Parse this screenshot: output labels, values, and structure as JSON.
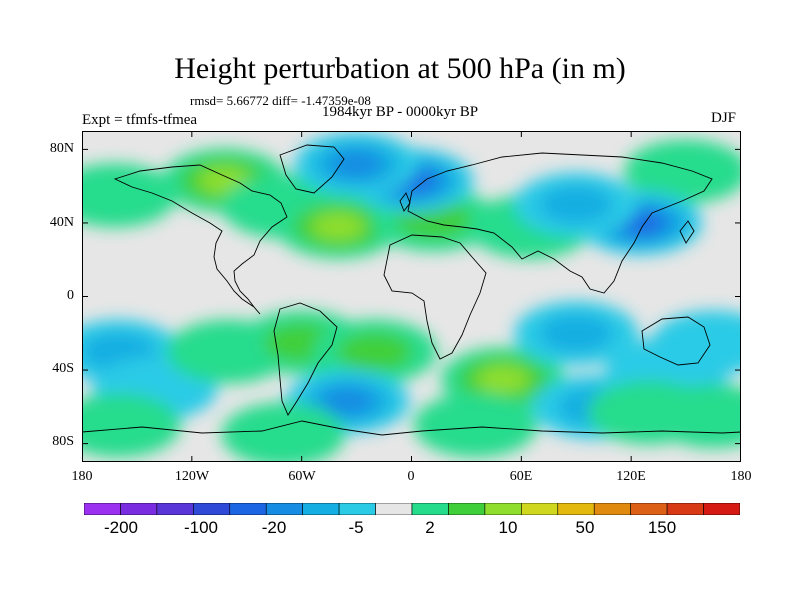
{
  "title": "Height perturbation at 500 hPa (in m)",
  "stats": "rmsd= 5.66772 diff= -1.47359e-08",
  "experiment": "Expt = tfmfs-tfmea",
  "period": "1984kyr BP - 0000kyr BP",
  "season": "DJF",
  "y_axis_labels": [
    "80N",
    "40N",
    "0",
    "40S",
    "80S"
  ],
  "x_axis_labels": [
    "180",
    "120W",
    "60W",
    "0",
    "60E",
    "120E",
    "180"
  ],
  "colorbar": {
    "colors": [
      "#9b30f0",
      "#7a2de0",
      "#5a36d8",
      "#2f4ad6",
      "#1d66e3",
      "#178ce3",
      "#15aee2",
      "#2bcbe6",
      "#e6e6e6",
      "#25dc8d",
      "#3fcf3a",
      "#8fde2e",
      "#cfd81f",
      "#e3b80f",
      "#e08a10",
      "#dc6016",
      "#d93a16",
      "#d41a12"
    ],
    "labels": [
      "-200",
      "-100",
      "-20",
      "-5",
      "2",
      "10",
      "50",
      "150"
    ]
  },
  "anomalies": [
    {
      "lon": -102,
      "lat": 63,
      "level": 3
    },
    {
      "lon": -70,
      "lat": 49,
      "level": 1
    },
    {
      "lon": -40,
      "lat": 38,
      "level": 3
    },
    {
      "lon": 12,
      "lat": 42,
      "level": 2
    },
    {
      "lon": 65,
      "lat": 38,
      "level": 1
    },
    {
      "lon": 150,
      "lat": 68,
      "level": 1
    },
    {
      "lon": -162,
      "lat": 55,
      "level": 1
    },
    {
      "lon": 0,
      "lat": 63,
      "level": -4
    },
    {
      "lon": -30,
      "lat": 72,
      "level": -3
    },
    {
      "lon": 125,
      "lat": 40,
      "level": -4
    },
    {
      "lon": 90,
      "lat": 50,
      "level": -2
    },
    {
      "lon": -160,
      "lat": -30,
      "level": -2
    },
    {
      "lon": -140,
      "lat": -50,
      "level": -1
    },
    {
      "lon": -100,
      "lat": -30,
      "level": 1
    },
    {
      "lon": -60,
      "lat": -25,
      "level": 2
    },
    {
      "lon": -20,
      "lat": -30,
      "level": 2
    },
    {
      "lon": 50,
      "lat": -45,
      "level": 3
    },
    {
      "lon": 90,
      "lat": -20,
      "level": -2
    },
    {
      "lon": 140,
      "lat": -40,
      "level": -1
    },
    {
      "lon": 165,
      "lat": -25,
      "level": -1
    },
    {
      "lon": -35,
      "lat": -57,
      "level": -3
    },
    {
      "lon": 100,
      "lat": -60,
      "level": -2
    },
    {
      "lon": 130,
      "lat": -63,
      "level": 1
    },
    {
      "lon": 165,
      "lat": -65,
      "level": 1
    },
    {
      "lon": -160,
      "lat": -70,
      "level": 1
    },
    {
      "lon": -70,
      "lat": -75,
      "level": 1
    },
    {
      "lon": 35,
      "lat": -70,
      "level": 1
    }
  ]
}
